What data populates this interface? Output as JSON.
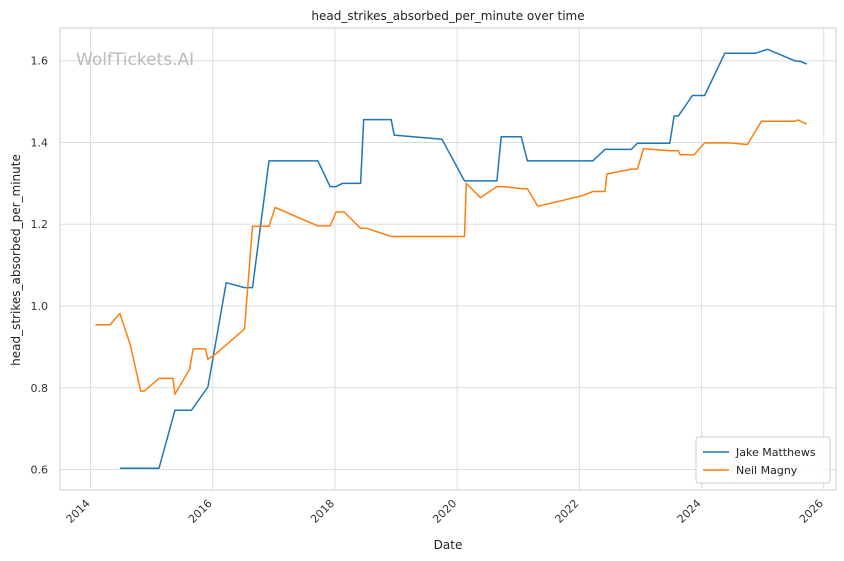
{
  "chart_data": {
    "type": "line",
    "title": "head_strikes_absorbed_per_minute over time",
    "xlabel": "Date",
    "ylabel": "head_strikes_absorbed_per_minute",
    "watermark": "WolfTickets.AI",
    "xlim": [
      2013.5,
      2026.2
    ],
    "ylim": [
      0.55,
      1.68
    ],
    "x_ticks": [
      2014,
      2016,
      2018,
      2020,
      2022,
      2024,
      2026
    ],
    "y_ticks": [
      0.6,
      0.8,
      1.0,
      1.2,
      1.4,
      1.6
    ],
    "y_tick_labels": [
      "0.6",
      "0.8",
      "1.0",
      "1.2",
      "1.4",
      "1.6"
    ],
    "grid": true,
    "legend_position": "bottom-right",
    "series": [
      {
        "name": "Jake Matthews",
        "color": "#1f77b4",
        "points": [
          [
            2014.48,
            0.603
          ],
          [
            2015.12,
            0.603
          ],
          [
            2015.38,
            0.745
          ],
          [
            2015.65,
            0.745
          ],
          [
            2015.92,
            0.802
          ],
          [
            2016.22,
            1.057
          ],
          [
            2016.52,
            1.045
          ],
          [
            2016.65,
            1.045
          ],
          [
            2016.92,
            1.355
          ],
          [
            2017.72,
            1.355
          ],
          [
            2017.92,
            1.292
          ],
          [
            2018.02,
            1.292
          ],
          [
            2018.12,
            1.3
          ],
          [
            2018.42,
            1.3
          ],
          [
            2018.47,
            1.456
          ],
          [
            2018.92,
            1.456
          ],
          [
            2018.97,
            1.418
          ],
          [
            2019.75,
            1.408
          ],
          [
            2020.12,
            1.306
          ],
          [
            2020.65,
            1.306
          ],
          [
            2020.72,
            1.414
          ],
          [
            2021.05,
            1.414
          ],
          [
            2021.15,
            1.355
          ],
          [
            2022.22,
            1.355
          ],
          [
            2022.42,
            1.383
          ],
          [
            2022.85,
            1.383
          ],
          [
            2022.95,
            1.398
          ],
          [
            2023.48,
            1.398
          ],
          [
            2023.55,
            1.465
          ],
          [
            2023.62,
            1.465
          ],
          [
            2023.85,
            1.515
          ],
          [
            2024.05,
            1.515
          ],
          [
            2024.38,
            1.618
          ],
          [
            2024.88,
            1.618
          ],
          [
            2025.08,
            1.628
          ],
          [
            2025.52,
            1.6
          ],
          [
            2025.62,
            1.598
          ],
          [
            2025.72,
            1.592
          ]
        ]
      },
      {
        "name": "Neil Magny",
        "color": "#ff7f0e",
        "points": [
          [
            2014.08,
            0.954
          ],
          [
            2014.32,
            0.954
          ],
          [
            2014.48,
            0.982
          ],
          [
            2014.65,
            0.905
          ],
          [
            2014.82,
            0.792
          ],
          [
            2014.88,
            0.792
          ],
          [
            2015.12,
            0.823
          ],
          [
            2015.35,
            0.823
          ],
          [
            2015.38,
            0.784
          ],
          [
            2015.62,
            0.845
          ],
          [
            2015.68,
            0.895
          ],
          [
            2015.88,
            0.895
          ],
          [
            2015.92,
            0.87
          ],
          [
            2016.05,
            0.883
          ],
          [
            2016.52,
            0.944
          ],
          [
            2016.65,
            1.195
          ],
          [
            2016.92,
            1.195
          ],
          [
            2017.02,
            1.241
          ],
          [
            2017.72,
            1.196
          ],
          [
            2017.92,
            1.196
          ],
          [
            2018.02,
            1.23
          ],
          [
            2018.15,
            1.23
          ],
          [
            2018.42,
            1.19
          ],
          [
            2018.52,
            1.19
          ],
          [
            2018.92,
            1.17
          ],
          [
            2020.12,
            1.17
          ],
          [
            2020.15,
            1.3
          ],
          [
            2020.38,
            1.265
          ],
          [
            2020.65,
            1.292
          ],
          [
            2020.75,
            1.292
          ],
          [
            2021.05,
            1.287
          ],
          [
            2021.15,
            1.287
          ],
          [
            2021.32,
            1.244
          ],
          [
            2022.05,
            1.27
          ],
          [
            2022.22,
            1.28
          ],
          [
            2022.42,
            1.28
          ],
          [
            2022.45,
            1.323
          ],
          [
            2022.85,
            1.335
          ],
          [
            2022.95,
            1.335
          ],
          [
            2023.05,
            1.385
          ],
          [
            2023.48,
            1.38
          ],
          [
            2023.62,
            1.38
          ],
          [
            2023.65,
            1.37
          ],
          [
            2023.88,
            1.37
          ],
          [
            2024.05,
            1.399
          ],
          [
            2024.45,
            1.399
          ],
          [
            2024.75,
            1.395
          ],
          [
            2024.98,
            1.452
          ],
          [
            2025.52,
            1.452
          ],
          [
            2025.58,
            1.455
          ],
          [
            2025.72,
            1.445
          ]
        ]
      }
    ]
  }
}
